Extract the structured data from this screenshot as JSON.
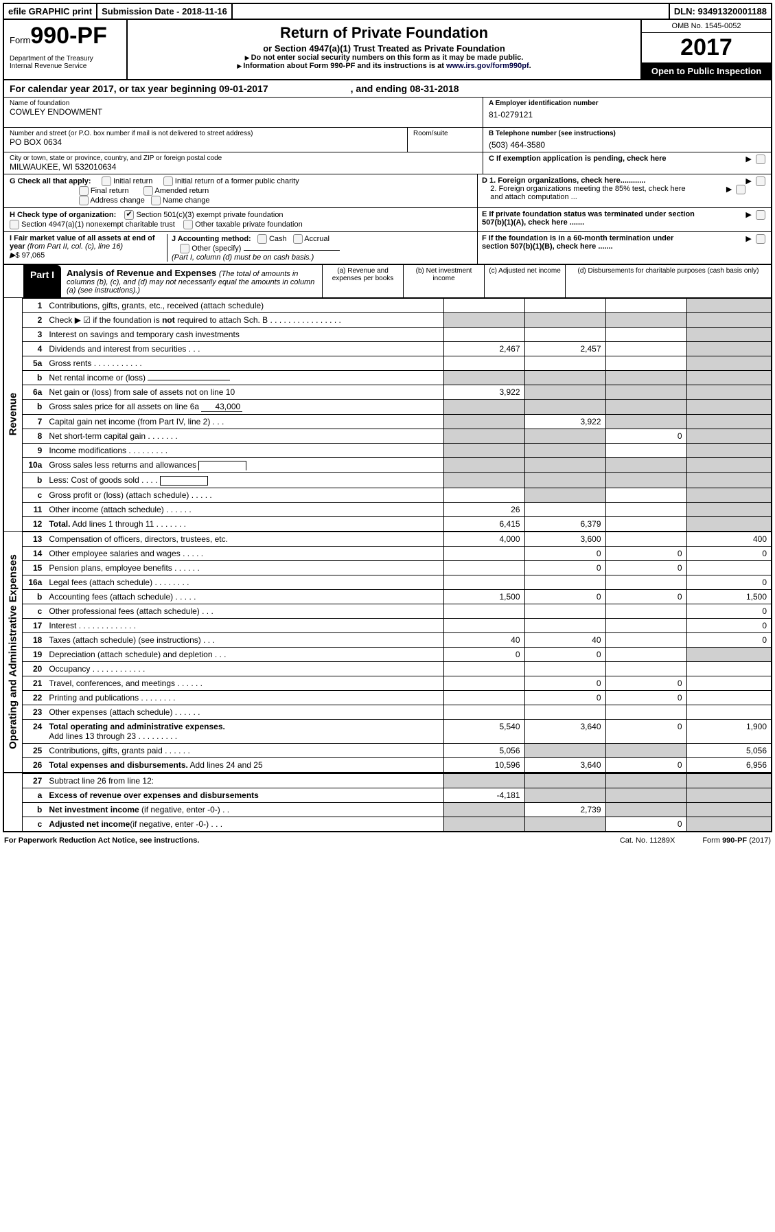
{
  "topbar": {
    "efile": "efile GRAPHIC print",
    "subdate": "Submission Date - 2018-11-16",
    "dln": "DLN: 93491320001188"
  },
  "hdr": {
    "form_prefix": "Form",
    "form_num": "990-PF",
    "dept": "Department of the Treasury",
    "irs": "Internal Revenue Service",
    "title": "Return of Private Foundation",
    "sub": "or Section 4947(a)(1) Trust Treated as Private Foundation",
    "note1": "Do not enter social security numbers on this form as it may be made public.",
    "note2_a": "Information about Form 990-PF and its instructions is at ",
    "note2_link": "www.irs.gov/form990pf",
    "omb": "OMB No. 1545-0052",
    "year": "2017",
    "open": "Open to Public Inspection"
  },
  "calyear": {
    "a": "For calendar year 2017, or tax year beginning 09-01-2017",
    "b": ", and ending 08-31-2018"
  },
  "name": {
    "lbl": "Name of foundation",
    "val": "COWLEY ENDOWMENT"
  },
  "ein": {
    "lbl": "A Employer identification number",
    "val": "81-0279121"
  },
  "addr": {
    "lbl": "Number and street (or P.O. box number if mail is not delivered to street address)",
    "val": "PO BOX 0634",
    "room": "Room/suite"
  },
  "tel": {
    "lbl": "B Telephone number (see instructions)",
    "val": "(503) 464-3580"
  },
  "city": {
    "lbl": "City or town, state or province, country, and ZIP or foreign postal code",
    "val": "MILWAUKEE, WI  532010634"
  },
  "c": {
    "txt": "C If exemption application is pending, check here"
  },
  "g": {
    "lbl": "G Check all that apply:",
    "opts": [
      "Initial return",
      "Initial return of a former public charity",
      "Final return",
      "Amended return",
      "Address change",
      "Name change"
    ]
  },
  "d": {
    "d1": "D 1. Foreign organizations, check here............",
    "d2": "2. Foreign organizations meeting the 85% test, check here and attach computation ..."
  },
  "h": {
    "lbl": "H Check type of organization:",
    "o1": "Section 501(c)(3) exempt private foundation",
    "o2": "Section 4947(a)(1) nonexempt charitable trust",
    "o3": "Other taxable private foundation"
  },
  "e": {
    "txt": "E If private foundation status was terminated under section 507(b)(1)(A), check here ......."
  },
  "i": {
    "lbl": "I Fair market value of all assets at end of year ",
    "i2": "(from Part II, col. (c), line 16)",
    "amt": "$  97,065"
  },
  "j": {
    "lbl": "J Accounting method:",
    "cash": "Cash",
    "accr": "Accrual",
    "oth": "Other (specify)",
    "note": "(Part I, column (d) must be on cash basis.)"
  },
  "f": {
    "txt": "F If the foundation is in a 60-month termination under section 507(b)(1)(B), check here ......."
  },
  "part1": {
    "tag": "Part I",
    "title": "Analysis of Revenue and Expenses ",
    "sub": "(The total of amounts in columns (b), (c), and (d) may not necessarily equal the amounts in column (a) (see instructions).)",
    "cols": [
      "(a)   Revenue and expenses per books",
      "(b)   Net investment income",
      "(c)   Adjusted net income",
      "(d)   Disbursements for charitable purposes (cash basis only)"
    ]
  },
  "rev_label": "Revenue",
  "exp_label": "Operating and Administrative Expenses",
  "rows": [
    {
      "n": "1",
      "d": "Contributions, gifts, grants, etc., received (attach schedule)",
      "a": "",
      "b": "",
      "c": "",
      "dS": true,
      "cS": false
    },
    {
      "n": "2",
      "d": "Check ▶ ☑ if the foundation is <b>not</b> required to attach Sch. B   .  .  .  .  .  .  .  .  .  .  .  .  .  .  .  .",
      "aS": true,
      "bS": true,
      "cS": true,
      "dS": true
    },
    {
      "n": "3",
      "d": "Interest on savings and temporary cash investments",
      "a": "",
      "b": "",
      "c": "",
      "dS": true
    },
    {
      "n": "4",
      "d": "Dividends and interest from securities    .   .   .",
      "a": "2,467",
      "b": "2,457",
      "c": "",
      "dS": true
    },
    {
      "n": "5a",
      "d": "Gross rents    .   .   .   .   .   .   .   .   .   .   .",
      "a": "",
      "b": "",
      "c": "",
      "dS": true
    },
    {
      "n": "b",
      "d": "Net rental income or (loss) <span class='ul' style='min-width:120px'></span>",
      "aS": true,
      "bS": true,
      "cS": true,
      "dS": true
    },
    {
      "n": "6a",
      "d": "Net gain or (loss) from sale of assets not on line 10",
      "a": "3,922",
      "bS": true,
      "cS": true,
      "dS": true
    },
    {
      "n": "b",
      "d": "Gross sales price for all assets on line 6a <span class='ul'>&nbsp;&nbsp;&nbsp;&nbsp;&nbsp;&nbsp;43,000</span>",
      "aS": true,
      "bS": true,
      "cS": true,
      "dS": true
    },
    {
      "n": "7",
      "d": "Capital gain net income (from Part IV, line 2)   .   .   .",
      "aS": true,
      "b": "3,922",
      "cS": true,
      "dS": true
    },
    {
      "n": "8",
      "d": "Net short-term capital gain   .   .   .   .   .   .   .",
      "aS": true,
      "bS": true,
      "c": "0",
      "dS": true
    },
    {
      "n": "9",
      "d": "Income modifications   .   .   .   .   .   .   .   .   .",
      "aS": true,
      "bS": true,
      "c": "",
      "dS": true
    },
    {
      "n": "10a",
      "d": "Gross sales less returns and allowances <span style='display:inline-block;border:1px solid #000;border-bottom:none;width:70px;height:14px;vertical-align:middle'></span>",
      "aS": true,
      "bS": true,
      "cS": true,
      "dS": true
    },
    {
      "n": "b",
      "d": "Less: Cost of goods sold   .   .   .   . <span style='display:inline-block;border:1px solid #000;width:70px;height:14px;vertical-align:middle'></span>",
      "aS": true,
      "bS": true,
      "cS": true,
      "dS": true
    },
    {
      "n": "c",
      "d": "Gross profit or (loss) (attach schedule)   .   .   .   .   .",
      "a": "",
      "bS": true,
      "c": "",
      "dS": true
    },
    {
      "n": "11",
      "d": "Other income (attach schedule)    .   .   .   .   .   .",
      "a": "26",
      "b": "",
      "c": "",
      "dS": true
    },
    {
      "n": "12",
      "d": "<b>Total.</b> Add lines 1 through 11   .   .   .   .   .   .   .",
      "a": "6,415",
      "b": "6,379",
      "c": "",
      "dS": true
    }
  ],
  "exp": [
    {
      "n": "13",
      "d": "Compensation of officers, directors, trustees, etc.",
      "a": "4,000",
      "b": "3,600",
      "c": "",
      "dd": "400"
    },
    {
      "n": "14",
      "d": "Other employee salaries and wages   .   .   .   .   .",
      "a": "",
      "b": "0",
      "c": "0",
      "dd": "0"
    },
    {
      "n": "15",
      "d": "Pension plans, employee benefits   .   .   .   .   .   .",
      "a": "",
      "b": "0",
      "c": "0",
      "dd": ""
    },
    {
      "n": "16a",
      "d": "Legal fees (attach schedule)  .   .   .   .   .   .   .   .",
      "a": "",
      "b": "",
      "c": "",
      "dd": "0"
    },
    {
      "n": "b",
      "d": "Accounting fees (attach schedule)   .   .   .   .   .",
      "a": "1,500",
      "b": "0",
      "c": "0",
      "dd": "1,500"
    },
    {
      "n": "c",
      "d": "Other professional fees (attach schedule)   .   .   .",
      "a": "",
      "b": "",
      "c": "",
      "dd": "0"
    },
    {
      "n": "17",
      "d": "Interest   .   .   .   .   .   .   .   .   .   .   .   .   .",
      "a": "",
      "b": "",
      "c": "",
      "dd": "0"
    },
    {
      "n": "18",
      "d": "Taxes (attach schedule) (see instructions)    .   .   .",
      "a": "40",
      "b": "40",
      "c": "",
      "dd": "0"
    },
    {
      "n": "19",
      "d": "Depreciation (attach schedule) and depletion    .   .   .",
      "a": "0",
      "b": "0",
      "c": "",
      "dS": true
    },
    {
      "n": "20",
      "d": "Occupancy   .   .   .   .   .   .   .   .   .   .   .   .",
      "a": "",
      "b": "",
      "c": "",
      "dd": ""
    },
    {
      "n": "21",
      "d": "Travel, conferences, and meetings  .   .   .   .   .   .",
      "a": "",
      "b": "0",
      "c": "0",
      "dd": ""
    },
    {
      "n": "22",
      "d": "Printing and publications  .   .   .   .   .   .   .   .",
      "a": "",
      "b": "0",
      "c": "0",
      "dd": ""
    },
    {
      "n": "23",
      "d": "Other expenses (attach schedule)   .   .   .   .   .   .",
      "a": "",
      "b": "",
      "c": "",
      "dd": ""
    },
    {
      "n": "24",
      "d": "<b>Total operating and administrative expenses.</b><br>Add lines 13 through 23   .   .   .   .   .   .   .   .   .",
      "a": "5,540",
      "b": "3,640",
      "c": "0",
      "dd": "1,900"
    },
    {
      "n": "25",
      "d": "Contributions, gifts, grants paid    .   .   .   .   .   .",
      "a": "5,056",
      "bS": true,
      "cS": true,
      "dd": "5,056"
    },
    {
      "n": "26",
      "d": "<b>Total expenses and disbursements.</b> Add lines 24 and 25",
      "a": "10,596",
      "b": "3,640",
      "c": "0",
      "dd": "6,956"
    }
  ],
  "bottom": [
    {
      "n": "27",
      "d": "Subtract line 26 from line 12:",
      "aS": true,
      "bS": true,
      "cS": true,
      "dS": true
    },
    {
      "n": "a",
      "d": "<b>Excess of revenue over expenses and disbursements</b>",
      "a": "-4,181",
      "bS": true,
      "cS": true,
      "dS": true
    },
    {
      "n": "b",
      "d": "<b>Net investment income</b> (if negative, enter -0-)   .   .",
      "aS": true,
      "b": "2,739",
      "cS": true,
      "dS": true
    },
    {
      "n": "c",
      "d": "<b>Adjusted net income</b>(if negative, enter -0-)   .   .   .",
      "aS": true,
      "bS": true,
      "c": "0",
      "dS": true
    }
  ],
  "footer": {
    "a": "For Paperwork Reduction Act Notice, see instructions.",
    "b": "Cat. No. 11289X",
    "c": "Form ",
    "d": "990-PF",
    "e": " (2017)"
  }
}
